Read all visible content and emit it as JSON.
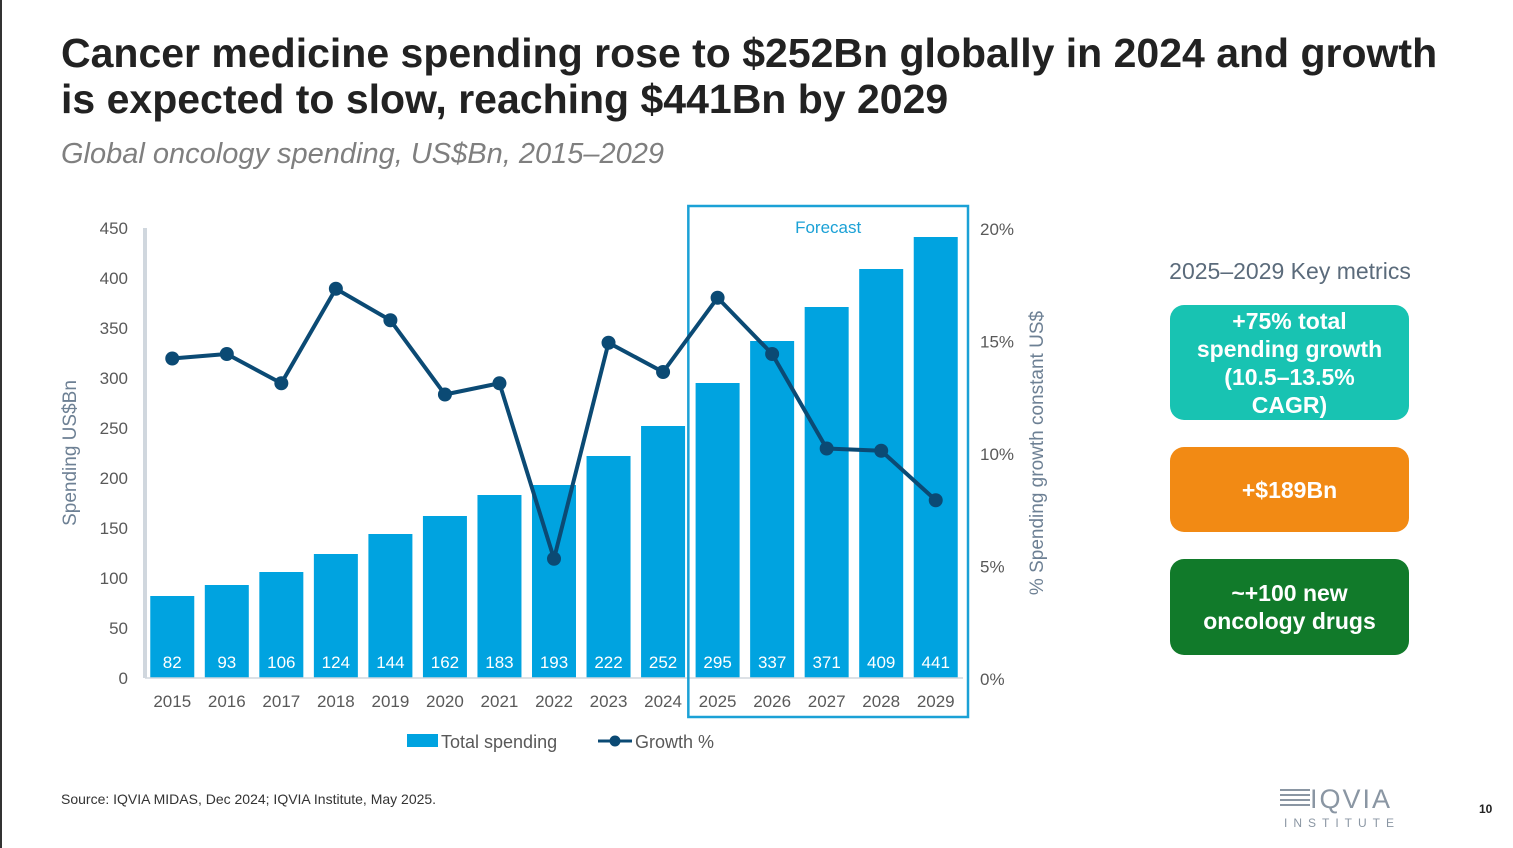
{
  "title": "Cancer medicine spending rose to $252Bn globally in 2024 and growth is expected to slow, reaching $441Bn by 2029",
  "subtitle": "Global oncology spending, US$Bn, 2015–2029",
  "chart_data": {
    "type": "bar",
    "categories": [
      "2015",
      "2016",
      "2017",
      "2018",
      "2019",
      "2020",
      "2021",
      "2022",
      "2023",
      "2024",
      "2025",
      "2026",
      "2027",
      "2028",
      "2029"
    ],
    "series": [
      {
        "name": "Total spending",
        "type": "bar",
        "axis": "left",
        "color": "#00a3e0",
        "values": [
          82,
          93,
          106,
          124,
          144,
          162,
          183,
          193,
          222,
          252,
          295,
          337,
          371,
          409,
          441
        ]
      },
      {
        "name": "Growth %",
        "type": "line",
        "axis": "right",
        "color": "#0b4a74",
        "values": [
          14.2,
          14.4,
          13.1,
          17.3,
          15.9,
          12.6,
          13.1,
          5.3,
          14.9,
          13.6,
          16.9,
          14.4,
          10.2,
          10.1,
          7.9
        ]
      }
    ],
    "ylabel": "Spending US$Bn",
    "y2label": "% Spending growth constant US$",
    "ylim": [
      0,
      450
    ],
    "yticks": [
      "0",
      "50",
      "100",
      "150",
      "200",
      "250",
      "300",
      "350",
      "400",
      "450"
    ],
    "y2lim": [
      0,
      20
    ],
    "y2ticks": [
      "0%",
      "5%",
      "10%",
      "15%",
      "20%"
    ],
    "forecast_label": "Forecast",
    "forecast_from": "2025",
    "legend": [
      "Total spending",
      "Growth %"
    ],
    "legend_position": "bottom",
    "grid": false
  },
  "metrics": {
    "heading": "2025–2029 Key metrics",
    "items": [
      {
        "text": "+75% total spending growth (10.5–13.5% CAGR)",
        "color": "#18c3b2"
      },
      {
        "text": "+$189Bn",
        "color": "#f28a14"
      },
      {
        "text": "~+100 new oncology drugs",
        "color": "#117a2a"
      }
    ]
  },
  "source": "Source: IQVIA MIDAS, Dec 2024; IQVIA Institute, May 2025.",
  "logo": {
    "name": "IQVIA",
    "sub": "INSTITUTE"
  },
  "page_number": "10"
}
